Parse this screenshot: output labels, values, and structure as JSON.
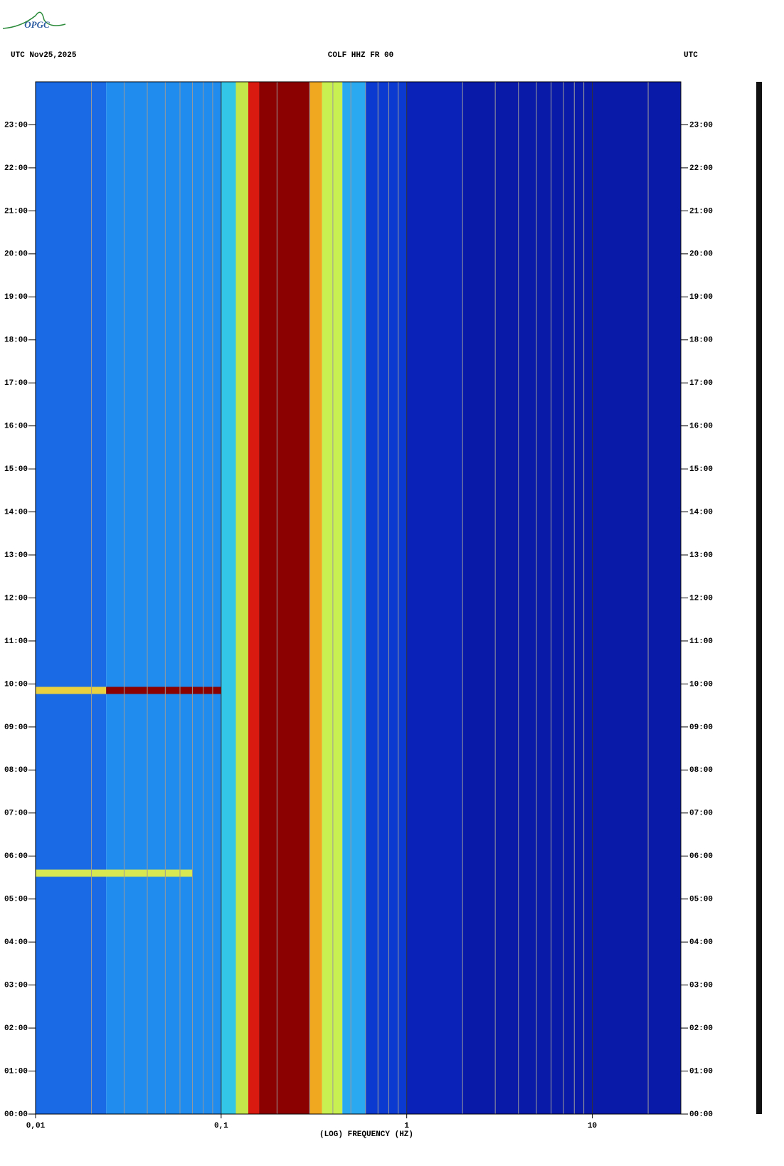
{
  "logo": "OPGC",
  "chart_data": {
    "type": "spectrogram",
    "title_left": "UTC  Nov25,2025",
    "title": "COLF HHZ FR 00",
    "title_right": "UTC",
    "xlabel": "(LOG) FREQUENCY (HZ)",
    "xscale": "log",
    "xlim": [
      0.01,
      30
    ],
    "xticks": [
      {
        "value": 0.01,
        "label": "0,01"
      },
      {
        "value": 0.1,
        "label": "0,1"
      },
      1,
      10
    ],
    "xgrid": [
      0.02,
      0.03,
      0.04,
      0.05,
      0.06,
      0.07,
      0.08,
      0.09,
      0.2,
      0.3,
      0.4,
      0.5,
      0.6,
      0.7,
      0.8,
      0.9,
      2,
      3,
      4,
      5,
      6,
      7,
      8,
      9,
      20
    ],
    "ylim": [
      0,
      24
    ],
    "yticks": [
      {
        "value": 0,
        "label": "00:00"
      },
      {
        "value": 1,
        "label": "01:00"
      },
      {
        "value": 2,
        "label": "02:00"
      },
      {
        "value": 3,
        "label": "03:00"
      },
      {
        "value": 4,
        "label": "04:00"
      },
      {
        "value": 5,
        "label": "05:00"
      },
      {
        "value": 6,
        "label": "06:00"
      },
      {
        "value": 7,
        "label": "07:00"
      },
      {
        "value": 8,
        "label": "08:00"
      },
      {
        "value": 9,
        "label": "09:00"
      },
      {
        "value": 10,
        "label": "10:00"
      },
      {
        "value": 11,
        "label": "11:00"
      },
      {
        "value": 12,
        "label": "12:00"
      },
      {
        "value": 13,
        "label": "13:00"
      },
      {
        "value": 14,
        "label": "14:00"
      },
      {
        "value": 15,
        "label": "15:00"
      },
      {
        "value": 16,
        "label": "16:00"
      },
      {
        "value": 17,
        "label": "17:00"
      },
      {
        "value": 18,
        "label": "18:00"
      },
      {
        "value": 19,
        "label": "19:00"
      },
      {
        "value": 20,
        "label": "20:00"
      },
      {
        "value": 21,
        "label": "21:00"
      },
      {
        "value": 22,
        "label": "22:00"
      },
      {
        "value": 23,
        "label": "23:00"
      }
    ],
    "bands": [
      {
        "from": 0.01,
        "to": 0.024,
        "color": "#1a6ae6"
      },
      {
        "from": 0.024,
        "to": 0.1,
        "color": "#1f8cee"
      },
      {
        "from": 0.1,
        "to": 0.12,
        "color": "#34c6e6"
      },
      {
        "from": 0.12,
        "to": 0.14,
        "color": "#c4e64a"
      },
      {
        "from": 0.14,
        "to": 0.16,
        "color": "#d81a10"
      },
      {
        "from": 0.16,
        "to": 0.3,
        "color": "#8b0000"
      },
      {
        "from": 0.3,
        "to": 0.35,
        "color": "#f0a820"
      },
      {
        "from": 0.35,
        "to": 0.45,
        "color": "#c8f050"
      },
      {
        "from": 0.45,
        "to": 0.6,
        "color": "#2aa8f0"
      },
      {
        "from": 0.6,
        "to": 1,
        "color": "#0a3ad0"
      },
      {
        "from": 1,
        "to": 2,
        "color": "#0a22b8"
      },
      {
        "from": 2,
        "to": 30,
        "color": "#0a1aa8"
      }
    ],
    "events": [
      {
        "time": 9.85,
        "from": 0.01,
        "to": 0.024,
        "color": "#e8d040"
      },
      {
        "time": 9.85,
        "from": 0.024,
        "to": 0.1,
        "color": "#8b0000"
      },
      {
        "time": 5.6,
        "from": 0.01,
        "to": 0.07,
        "color": "#d8e850"
      }
    ]
  }
}
